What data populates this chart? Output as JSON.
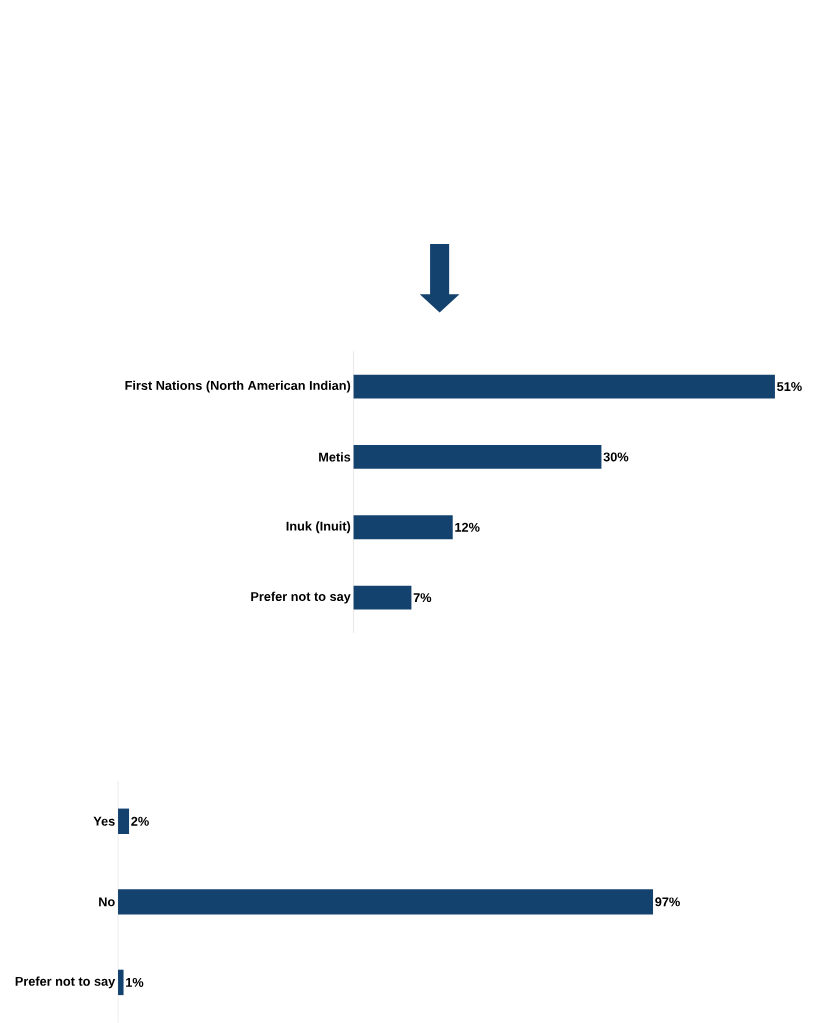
{
  "chart_data": [
    {
      "type": "bar",
      "orientation": "horizontal",
      "categories": [
        "Yes",
        "No",
        "Prefer not to say"
      ],
      "values": [
        2,
        97,
        1
      ],
      "value_labels": [
        "2%",
        "97%",
        "1%"
      ],
      "color": "#14426e"
    },
    {
      "type": "bar",
      "orientation": "horizontal",
      "categories": [
        "First Nations (North American Indian)",
        "Metis",
        "Inuk (Inuit)",
        "Prefer not to say"
      ],
      "values": [
        51,
        30,
        12,
        7
      ],
      "value_labels": [
        "51%",
        "30%",
        "12%",
        "7%"
      ],
      "color": "#14426e"
    }
  ]
}
